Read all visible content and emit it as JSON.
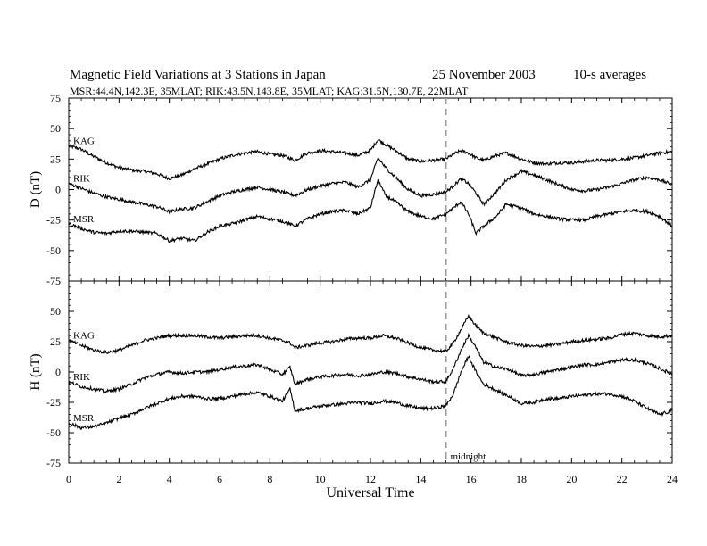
{
  "header": {
    "title": "Magnetic Field Variations at 3 Stations in Japan",
    "date": "25 November 2003",
    "averaging": "10-s averages",
    "stations_line": "MSR:44.4N,142.3E, 35MLAT;  RIK:43.5N,143.8E, 35MLAT;  KAG:31.5N,130.7E, 22MLAT"
  },
  "chart_data": [
    {
      "type": "line",
      "panel": "D",
      "ylabel": "D (nT)",
      "xlabel": "Universal Time",
      "xlim": [
        0,
        24
      ],
      "ylim": [
        -75,
        75
      ],
      "x_ticks": [
        0,
        2,
        4,
        6,
        8,
        10,
        12,
        14,
        16,
        18,
        20,
        22,
        24
      ],
      "y_ticks": [
        75,
        50,
        25,
        0,
        -25,
        -50,
        -75
      ],
      "grid": false,
      "annotation": {
        "x": 15,
        "label": "midnight",
        "style": "dashed-vertical"
      },
      "series": [
        {
          "name": "KAG",
          "x": [
            0,
            0.5,
            1,
            1.5,
            2,
            2.5,
            3,
            3.5,
            4,
            4.5,
            5,
            5.5,
            6,
            6.5,
            7,
            7.5,
            8,
            8.5,
            9,
            9.5,
            10,
            10.5,
            11,
            11.5,
            12,
            12.3,
            12.6,
            13,
            13.5,
            14,
            14.5,
            15,
            15.3,
            15.6,
            15.9,
            16.2,
            16.5,
            17,
            17.4,
            18,
            18.5,
            19,
            19.5,
            20,
            20.5,
            21,
            21.5,
            22,
            22.5,
            23,
            23.5,
            24
          ],
          "values": [
            36,
            33,
            27,
            22,
            18,
            16,
            15,
            13,
            9,
            12,
            17,
            21,
            25,
            28,
            30,
            31,
            29,
            28,
            24,
            30,
            32,
            31,
            30,
            28,
            32,
            41,
            37,
            32,
            25,
            23,
            24,
            25,
            29,
            32,
            30,
            26,
            24,
            28,
            30,
            25,
            22,
            21,
            22,
            22,
            23,
            24,
            24,
            25,
            26,
            28,
            30,
            31
          ]
        },
        {
          "name": "RIK",
          "x": [
            0,
            0.5,
            1,
            1.5,
            2,
            2.5,
            3,
            3.5,
            4,
            4.5,
            5,
            5.5,
            6,
            6.5,
            7,
            7.5,
            8,
            8.5,
            9,
            9.5,
            10,
            10.5,
            11,
            11.5,
            12,
            12.3,
            12.6,
            13,
            13.5,
            14,
            14.5,
            15,
            15.3,
            15.6,
            15.9,
            16.2,
            16.5,
            17,
            17.4,
            18,
            18.5,
            19,
            19.5,
            20,
            20.5,
            21,
            21.5,
            22,
            22.5,
            23,
            23.5,
            24
          ],
          "values": [
            5,
            1,
            -3,
            -6,
            -8,
            -10,
            -12,
            -14,
            -18,
            -16,
            -15,
            -10,
            -5,
            -2,
            0,
            2,
            0,
            -2,
            -5,
            0,
            3,
            5,
            6,
            2,
            8,
            26,
            18,
            10,
            0,
            -5,
            -4,
            -2,
            3,
            9,
            5,
            -3,
            -12,
            -2,
            8,
            15,
            12,
            8,
            4,
            0,
            -1,
            0,
            2,
            5,
            8,
            10,
            8,
            4
          ]
        },
        {
          "name": "MSR",
          "x": [
            0,
            0.5,
            1,
            1.5,
            2,
            2.5,
            3,
            3.5,
            4,
            4.5,
            5,
            5.5,
            6,
            6.5,
            7,
            7.5,
            8,
            8.5,
            9,
            9.5,
            10,
            10.5,
            11,
            11.5,
            12,
            12.3,
            12.6,
            13,
            13.5,
            14,
            14.5,
            15,
            15.3,
            15.6,
            15.9,
            16.2,
            16.5,
            17,
            17.4,
            18,
            18.5,
            19,
            19.5,
            20,
            20.5,
            21,
            21.5,
            22,
            22.5,
            23,
            23.5,
            24
          ],
          "values": [
            -28,
            -32,
            -35,
            -36,
            -34,
            -34,
            -35,
            -36,
            -42,
            -40,
            -42,
            -35,
            -30,
            -28,
            -25,
            -22,
            -24,
            -26,
            -30,
            -24,
            -20,
            -18,
            -17,
            -20,
            -15,
            8,
            -5,
            -10,
            -18,
            -22,
            -24,
            -20,
            -15,
            -10,
            -20,
            -36,
            -30,
            -22,
            -12,
            -15,
            -20,
            -22,
            -24,
            -25,
            -25,
            -22,
            -20,
            -18,
            -17,
            -18,
            -22,
            -30
          ]
        }
      ]
    },
    {
      "type": "line",
      "panel": "H",
      "ylabel": "H (nT)",
      "xlabel": "Universal Time",
      "xlim": [
        0,
        24
      ],
      "ylim": [
        -75,
        75
      ],
      "x_ticks": [
        0,
        2,
        4,
        6,
        8,
        10,
        12,
        14,
        16,
        18,
        20,
        22,
        24
      ],
      "y_ticks": [
        50,
        25,
        0,
        -25,
        -50,
        -75
      ],
      "grid": false,
      "annotation": {
        "x": 15,
        "label": "midnight",
        "style": "dashed-vertical"
      },
      "series": [
        {
          "name": "KAG",
          "x": [
            0,
            0.5,
            1,
            1.5,
            2,
            2.5,
            3,
            3.5,
            4,
            4.5,
            5,
            5.5,
            6,
            6.5,
            7,
            7.5,
            8,
            8.5,
            8.8,
            9,
            9.5,
            10,
            10.5,
            11,
            11.5,
            12,
            12.5,
            13,
            13.5,
            14,
            14.5,
            15,
            15.3,
            15.6,
            15.9,
            16.2,
            16.5,
            17,
            17.5,
            18,
            18.5,
            19,
            19.5,
            20,
            20.5,
            21,
            21.5,
            22,
            22.5,
            23,
            23.5,
            24
          ],
          "values": [
            26,
            22,
            18,
            16,
            18,
            22,
            26,
            28,
            30,
            30,
            30,
            29,
            28,
            29,
            30,
            30,
            28,
            26,
            24,
            20,
            22,
            24,
            25,
            27,
            28,
            28,
            30,
            28,
            24,
            20,
            18,
            17,
            24,
            35,
            46,
            38,
            32,
            28,
            24,
            22,
            21,
            22,
            23,
            25,
            26,
            27,
            28,
            31,
            32,
            30,
            29,
            30
          ]
        },
        {
          "name": "RIK",
          "x": [
            0,
            0.5,
            1,
            1.5,
            2,
            2.5,
            3,
            3.5,
            4,
            4.5,
            5,
            5.5,
            6,
            6.5,
            7,
            7.5,
            8,
            8.5,
            8.8,
            9,
            9.5,
            10,
            10.5,
            11,
            11.5,
            12,
            12.5,
            13,
            13.5,
            14,
            14.5,
            15,
            15.3,
            15.6,
            15.9,
            16.2,
            16.5,
            17,
            17.5,
            18,
            18.5,
            19,
            19.5,
            20,
            20.5,
            21,
            21.5,
            22,
            22.5,
            23,
            23.5,
            24
          ],
          "values": [
            -8,
            -12,
            -14,
            -16,
            -14,
            -10,
            -5,
            -2,
            0,
            -1,
            0,
            0,
            2,
            4,
            5,
            6,
            2,
            -2,
            4,
            -10,
            -6,
            -4,
            -3,
            -2,
            -3,
            -2,
            0,
            -1,
            -4,
            -6,
            -8,
            -8,
            3,
            18,
            30,
            20,
            8,
            4,
            2,
            -3,
            -2,
            0,
            2,
            4,
            6,
            6,
            8,
            10,
            10,
            7,
            3,
            -2
          ]
        },
        {
          "name": "MSR",
          "x": [
            0,
            0.5,
            1,
            1.5,
            2,
            2.5,
            3,
            3.5,
            4,
            4.5,
            5,
            5.5,
            6,
            6.5,
            7,
            7.5,
            8,
            8.5,
            8.8,
            9,
            9.5,
            10,
            10.5,
            11,
            11.5,
            12,
            12.5,
            13,
            13.5,
            14,
            14.5,
            15,
            15.3,
            15.6,
            15.9,
            16.2,
            16.5,
            17,
            17.5,
            18,
            18.5,
            19,
            19.5,
            20,
            20.5,
            21,
            21.5,
            22,
            22.5,
            23,
            23.5,
            24
          ],
          "values": [
            -42,
            -46,
            -45,
            -42,
            -38,
            -35,
            -30,
            -26,
            -22,
            -20,
            -20,
            -22,
            -22,
            -20,
            -18,
            -17,
            -20,
            -24,
            -14,
            -32,
            -30,
            -28,
            -27,
            -26,
            -25,
            -26,
            -24,
            -25,
            -28,
            -30,
            -30,
            -28,
            -18,
            0,
            13,
            0,
            -10,
            -15,
            -20,
            -26,
            -25,
            -22,
            -22,
            -20,
            -19,
            -18,
            -18,
            -20,
            -24,
            -30,
            -35,
            -32
          ]
        }
      ]
    }
  ]
}
